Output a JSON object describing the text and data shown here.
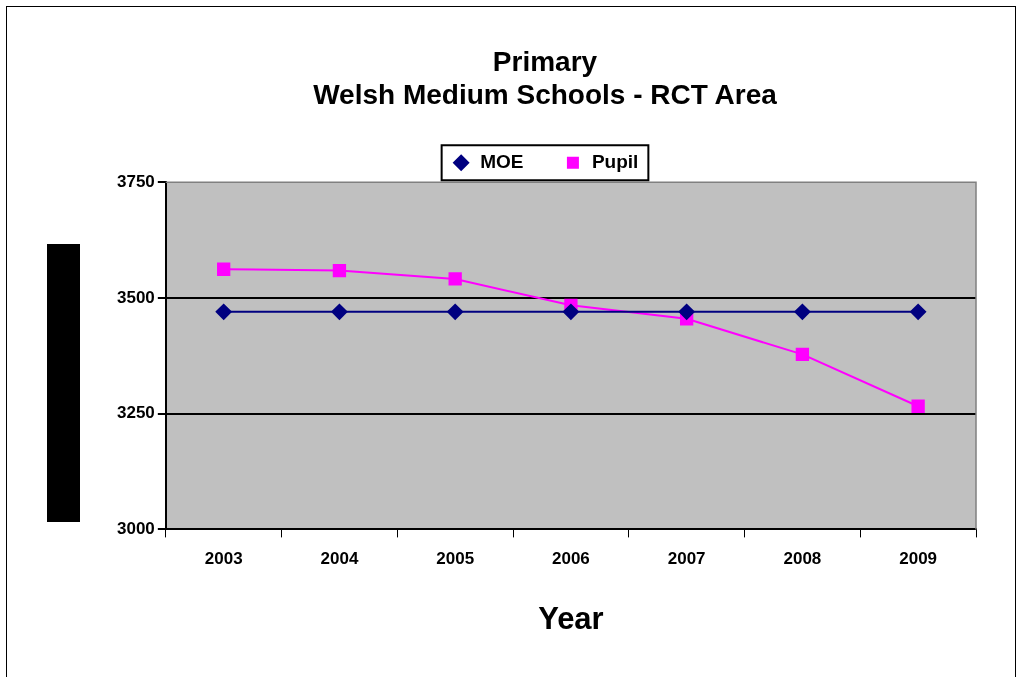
{
  "chart_data": {
    "type": "line",
    "title": "Primary\nWelsh Medium Schools - RCT Area",
    "xlabel": "Year",
    "categories": [
      "2003",
      "2004",
      "2005",
      "2006",
      "2007",
      "2008",
      "2009"
    ],
    "series": [
      {
        "name": "MOE",
        "color": "#000080",
        "marker": "diamond",
        "values": [
          3470,
          3470,
          3470,
          3470,
          3470,
          3470,
          3470
        ]
      },
      {
        "name": "Pupil",
        "color": "#ff00ff",
        "marker": "square",
        "values": [
          3562,
          3559,
          3541,
          3484,
          3455,
          3378,
          3266
        ]
      }
    ],
    "ylim": [
      3000,
      3750
    ],
    "yticks": [
      3000,
      3250,
      3500,
      3750
    ],
    "grid": "y",
    "legend": "top",
    "line_style": "solid"
  }
}
